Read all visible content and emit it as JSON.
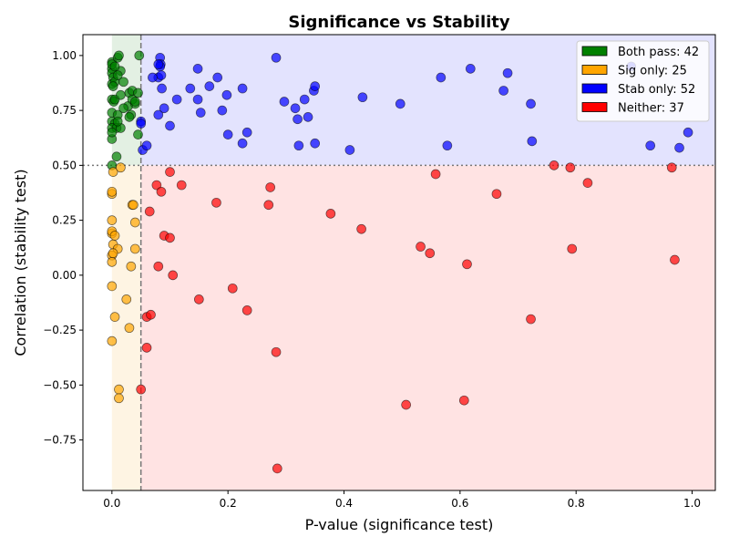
{
  "chart_data": {
    "type": "scatter",
    "title": "Significance vs Stability",
    "xlabel": "P-value (significance test)",
    "ylabel": "Correlation (stability test)",
    "xlim": [
      -0.05,
      1.04
    ],
    "ylim": [
      -0.98,
      1.095
    ],
    "xticks": [
      0,
      0.2,
      0.4,
      0.6,
      0.8,
      1.0
    ],
    "xtick_labels": [
      "0.0",
      "0.2",
      "0.4",
      "0.6",
      "0.8",
      "1.0"
    ],
    "yticks": [
      -0.75,
      -0.5,
      -0.25,
      0,
      0.25,
      0.5,
      0.75,
      1.0
    ],
    "ytick_labels": [
      "−0.75",
      "−0.50",
      "−0.25",
      "0.00",
      "0.25",
      "0.50",
      "0.75",
      "1.00"
    ],
    "grid": false,
    "legend_position": "top-right",
    "p_threshold": 0.05,
    "corr_threshold": 0.5,
    "region_colors": {
      "both": "#e3f0e3",
      "sig": "#fef4e3",
      "stab": "#e3e3fe",
      "neither": "#ffe3e3"
    },
    "series": [
      {
        "name": "Both pass: 42",
        "color": "#008000",
        "points": [
          [
            0,
            0.97
          ],
          [
            0,
            0.94
          ],
          [
            0,
            0.92
          ],
          [
            0.002,
            0.9
          ],
          [
            0,
            0.87
          ],
          [
            0.005,
            0.88
          ],
          [
            0.01,
            0.99
          ],
          [
            0.012,
            1.0
          ],
          [
            0.015,
            0.93
          ],
          [
            0.01,
            0.91
          ],
          [
            0.02,
            0.88
          ],
          [
            0,
            0.8
          ],
          [
            0.003,
            0.79
          ],
          [
            0.005,
            0.8
          ],
          [
            0.015,
            0.82
          ],
          [
            0.028,
            0.77
          ],
          [
            0.03,
            0.83
          ],
          [
            0.035,
            0.84
          ],
          [
            0.04,
            0.78
          ],
          [
            0.033,
            0.73
          ],
          [
            0.03,
            0.72
          ],
          [
            0.045,
            0.83
          ],
          [
            0,
            0.74
          ],
          [
            0,
            0.7
          ],
          [
            0.01,
            0.73
          ],
          [
            0.005,
            0.69
          ],
          [
            0,
            0.67
          ],
          [
            0.008,
            0.67
          ],
          [
            0.015,
            0.67
          ],
          [
            0,
            0.62
          ],
          [
            0.045,
            0.64
          ],
          [
            0.047,
            1.0
          ],
          [
            0,
            0.5
          ],
          [
            0.008,
            0.54
          ],
          [
            0.035,
            0.8
          ],
          [
            0.04,
            0.79
          ],
          [
            0.002,
            0.86
          ],
          [
            0,
            0.65
          ],
          [
            0.01,
            0.7
          ],
          [
            0.02,
            0.76
          ],
          [
            0,
            0.96
          ],
          [
            0.005,
            0.95
          ]
        ]
      },
      {
        "name": "Sig only: 25",
        "color": "#ffa500",
        "points": [
          [
            0,
            0.37
          ],
          [
            0,
            0.38
          ],
          [
            0.002,
            0.47
          ],
          [
            0.015,
            0.49
          ],
          [
            0.035,
            0.32
          ],
          [
            0.037,
            0.32
          ],
          [
            0,
            0.25
          ],
          [
            0.04,
            0.24
          ],
          [
            0,
            0.19
          ],
          [
            0,
            0.2
          ],
          [
            0.005,
            0.18
          ],
          [
            0.002,
            0.14
          ],
          [
            0.01,
            0.12
          ],
          [
            0.04,
            0.12
          ],
          [
            0,
            0.09
          ],
          [
            0,
            0.06
          ],
          [
            0.033,
            0.04
          ],
          [
            0,
            -0.05
          ],
          [
            0.025,
            -0.11
          ],
          [
            0.03,
            -0.24
          ],
          [
            0.005,
            -0.19
          ],
          [
            0,
            -0.3
          ],
          [
            0.012,
            -0.52
          ],
          [
            0.012,
            -0.56
          ],
          [
            0.002,
            0.1
          ]
        ]
      },
      {
        "name": "Stab only: 52",
        "color": "#0000ff",
        "points": [
          [
            0.05,
            0.7
          ],
          [
            0.05,
            0.69
          ],
          [
            0.053,
            0.57
          ],
          [
            0.06,
            0.59
          ],
          [
            0.08,
            0.9
          ],
          [
            0.083,
            0.99
          ],
          [
            0.084,
            0.96
          ],
          [
            0.083,
            0.95
          ],
          [
            0.085,
            0.91
          ],
          [
            0.086,
            0.85
          ],
          [
            0.08,
            0.73
          ],
          [
            0.09,
            0.76
          ],
          [
            0.1,
            0.68
          ],
          [
            0.112,
            0.8
          ],
          [
            0.135,
            0.85
          ],
          [
            0.148,
            0.94
          ],
          [
            0.148,
            0.8
          ],
          [
            0.153,
            0.74
          ],
          [
            0.168,
            0.86
          ],
          [
            0.182,
            0.9
          ],
          [
            0.19,
            0.75
          ],
          [
            0.198,
            0.82
          ],
          [
            0.2,
            0.64
          ],
          [
            0.225,
            0.6
          ],
          [
            0.225,
            0.85
          ],
          [
            0.233,
            0.65
          ],
          [
            0.283,
            0.99
          ],
          [
            0.297,
            0.79
          ],
          [
            0.316,
            0.76
          ],
          [
            0.32,
            0.71
          ],
          [
            0.322,
            0.59
          ],
          [
            0.332,
            0.8
          ],
          [
            0.338,
            0.72
          ],
          [
            0.348,
            0.84
          ],
          [
            0.35,
            0.86
          ],
          [
            0.35,
            0.6
          ],
          [
            0.41,
            0.57
          ],
          [
            0.432,
            0.81
          ],
          [
            0.497,
            0.78
          ],
          [
            0.567,
            0.9
          ],
          [
            0.578,
            0.59
          ],
          [
            0.618,
            0.94
          ],
          [
            0.675,
            0.84
          ],
          [
            0.682,
            0.92
          ],
          [
            0.722,
            0.78
          ],
          [
            0.724,
            0.61
          ],
          [
            0.928,
            0.59
          ],
          [
            0.978,
            0.58
          ],
          [
            0.993,
            0.65
          ],
          [
            0.895,
            0.95
          ],
          [
            0.08,
            0.96
          ],
          [
            0.07,
            0.9
          ]
        ]
      },
      {
        "name": "Neither: 37",
        "color": "#ff0000",
        "points": [
          [
            0.077,
            0.41
          ],
          [
            0.085,
            0.38
          ],
          [
            0.1,
            0.47
          ],
          [
            0.12,
            0.41
          ],
          [
            0.065,
            0.29
          ],
          [
            0.18,
            0.33
          ],
          [
            0.27,
            0.32
          ],
          [
            0.273,
            0.4
          ],
          [
            0.09,
            0.18
          ],
          [
            0.1,
            0.17
          ],
          [
            0.08,
            0.04
          ],
          [
            0.105,
            0.0
          ],
          [
            0.06,
            -0.19
          ],
          [
            0.067,
            -0.18
          ],
          [
            0.05,
            -0.52
          ],
          [
            0.06,
            -0.33
          ],
          [
            0.15,
            -0.11
          ],
          [
            0.208,
            -0.06
          ],
          [
            0.233,
            -0.16
          ],
          [
            0.283,
            -0.35
          ],
          [
            0.285,
            -0.88
          ],
          [
            0.377,
            0.28
          ],
          [
            0.43,
            0.21
          ],
          [
            0.507,
            -0.59
          ],
          [
            0.532,
            0.13
          ],
          [
            0.548,
            0.1
          ],
          [
            0.558,
            0.46
          ],
          [
            0.607,
            -0.57
          ],
          [
            0.612,
            0.05
          ],
          [
            0.663,
            0.37
          ],
          [
            0.722,
            -0.2
          ],
          [
            0.762,
            0.5
          ],
          [
            0.79,
            0.49
          ],
          [
            0.793,
            0.12
          ],
          [
            0.82,
            0.42
          ],
          [
            0.965,
            0.49
          ],
          [
            0.97,
            0.07
          ]
        ]
      }
    ]
  }
}
